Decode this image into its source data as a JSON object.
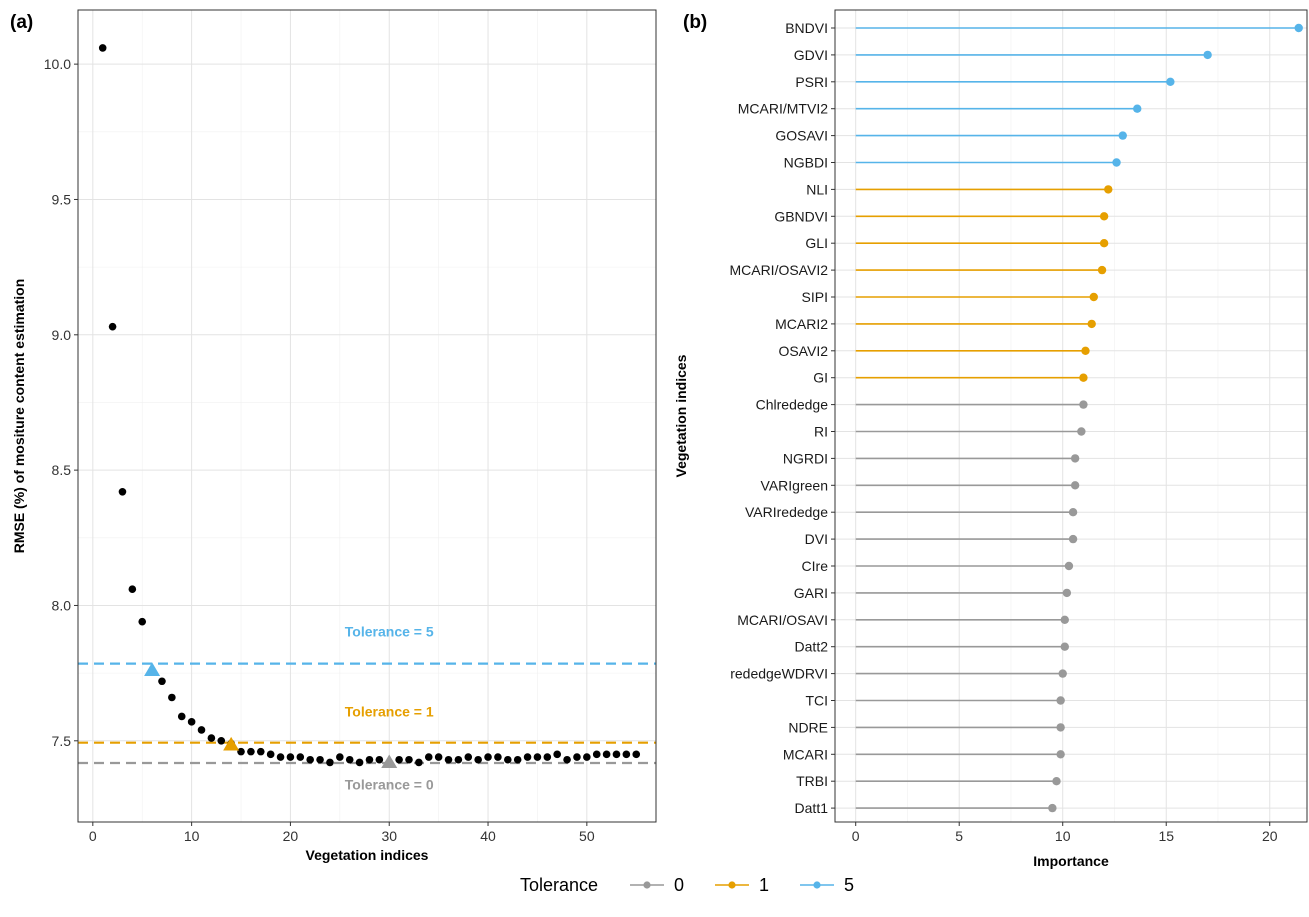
{
  "colors": {
    "tol0": "#999999",
    "tol1": "#E69F00",
    "tol5": "#56B4E9",
    "points": "#000000",
    "grid": "#e3e3e3",
    "border": "#333333"
  },
  "chart_data": [
    {
      "panel": "(a)",
      "type": "scatter",
      "xlabel": "Vegetation indices",
      "ylabel": "RMSE (%) of mositure content estimation",
      "xlim": [
        -1.5,
        57
      ],
      "ylim": [
        7.2,
        10.2
      ],
      "xticks": [
        0,
        10,
        20,
        30,
        40,
        50
      ],
      "yticks": [
        7.5,
        8.0,
        8.5,
        9.0,
        9.5,
        10.0
      ],
      "ytick_labels": [
        "7.5",
        "8.0",
        "8.5",
        "9.0",
        "9.5",
        "10.0"
      ],
      "x": [
        1,
        2,
        3,
        4,
        5,
        6,
        7,
        8,
        9,
        10,
        11,
        12,
        13,
        14,
        15,
        16,
        17,
        18,
        19,
        20,
        21,
        22,
        23,
        24,
        25,
        26,
        27,
        28,
        29,
        30,
        31,
        32,
        33,
        34,
        35,
        36,
        37,
        38,
        39,
        40,
        41,
        42,
        43,
        44,
        45,
        46,
        47,
        48,
        49,
        50,
        51,
        52,
        53,
        54,
        55
      ],
      "y": [
        10.06,
        9.03,
        8.42,
        8.06,
        7.94,
        7.76,
        7.72,
        7.66,
        7.59,
        7.57,
        7.54,
        7.51,
        7.5,
        7.49,
        7.46,
        7.46,
        7.46,
        7.45,
        7.44,
        7.44,
        7.44,
        7.43,
        7.43,
        7.42,
        7.44,
        7.43,
        7.42,
        7.43,
        7.43,
        7.42,
        7.43,
        7.43,
        7.42,
        7.44,
        7.44,
        7.43,
        7.43,
        7.44,
        7.43,
        7.44,
        7.44,
        7.43,
        7.43,
        7.44,
        7.44,
        7.44,
        7.45,
        7.43,
        7.44,
        7.44,
        7.45,
        7.45,
        7.45,
        7.45,
        7.45
      ],
      "tolerance_lines": [
        {
          "tolerance": 5,
          "y": 7.785,
          "label": "Tolerance = 5",
          "label_y": 7.885,
          "label_x": 30,
          "selected_x": 6,
          "selected_y": 7.76
        },
        {
          "tolerance": 1,
          "y": 7.493,
          "label": "Tolerance = 1",
          "label_y": 7.59,
          "label_x": 30,
          "selected_x": 14,
          "selected_y": 7.485
        },
        {
          "tolerance": 0,
          "y": 7.418,
          "label": "Tolerance = 0",
          "label_y": 7.32,
          "label_x": 30,
          "selected_x": 30,
          "selected_y": 7.42
        }
      ]
    },
    {
      "panel": "(b)",
      "type": "lollipop",
      "xlabel": "Importance",
      "ylabel": "Vegetation indices",
      "xlim": [
        -1,
        21.8
      ],
      "xticks": [
        0,
        5,
        10,
        15,
        20
      ],
      "categories": [
        "BNDVI",
        "GDVI",
        "PSRI",
        "MCARI/MTVI2",
        "GOSAVI",
        "NGBDI",
        "NLI",
        "GBNDVI",
        "GLI",
        "MCARI/OSAVI2",
        "SIPI",
        "MCARI2",
        "OSAVI2",
        "GI",
        "Chlrededge",
        "RI",
        "NGRDI",
        "VARIgreen",
        "VARIrededge",
        "DVI",
        "CIre",
        "GARI",
        "MCARI/OSAVI",
        "Datt2",
        "rededgeWDRVI",
        "TCI",
        "NDRE",
        "MCARI",
        "TRBI",
        "Datt1"
      ],
      "values": [
        21.4,
        17.0,
        15.2,
        13.6,
        12.9,
        12.6,
        12.2,
        12.0,
        12.0,
        11.9,
        11.5,
        11.4,
        11.1,
        11.0,
        11.0,
        10.9,
        10.6,
        10.6,
        10.5,
        10.5,
        10.3,
        10.2,
        10.1,
        10.1,
        10.0,
        9.9,
        9.9,
        9.9,
        9.7,
        9.5
      ],
      "tolerance": [
        5,
        5,
        5,
        5,
        5,
        5,
        1,
        1,
        1,
        1,
        1,
        1,
        1,
        1,
        0,
        0,
        0,
        0,
        0,
        0,
        0,
        0,
        0,
        0,
        0,
        0,
        0,
        0,
        0,
        0
      ]
    }
  ],
  "legend": {
    "title": "Tolerance",
    "items": [
      "0",
      "1",
      "5"
    ]
  }
}
